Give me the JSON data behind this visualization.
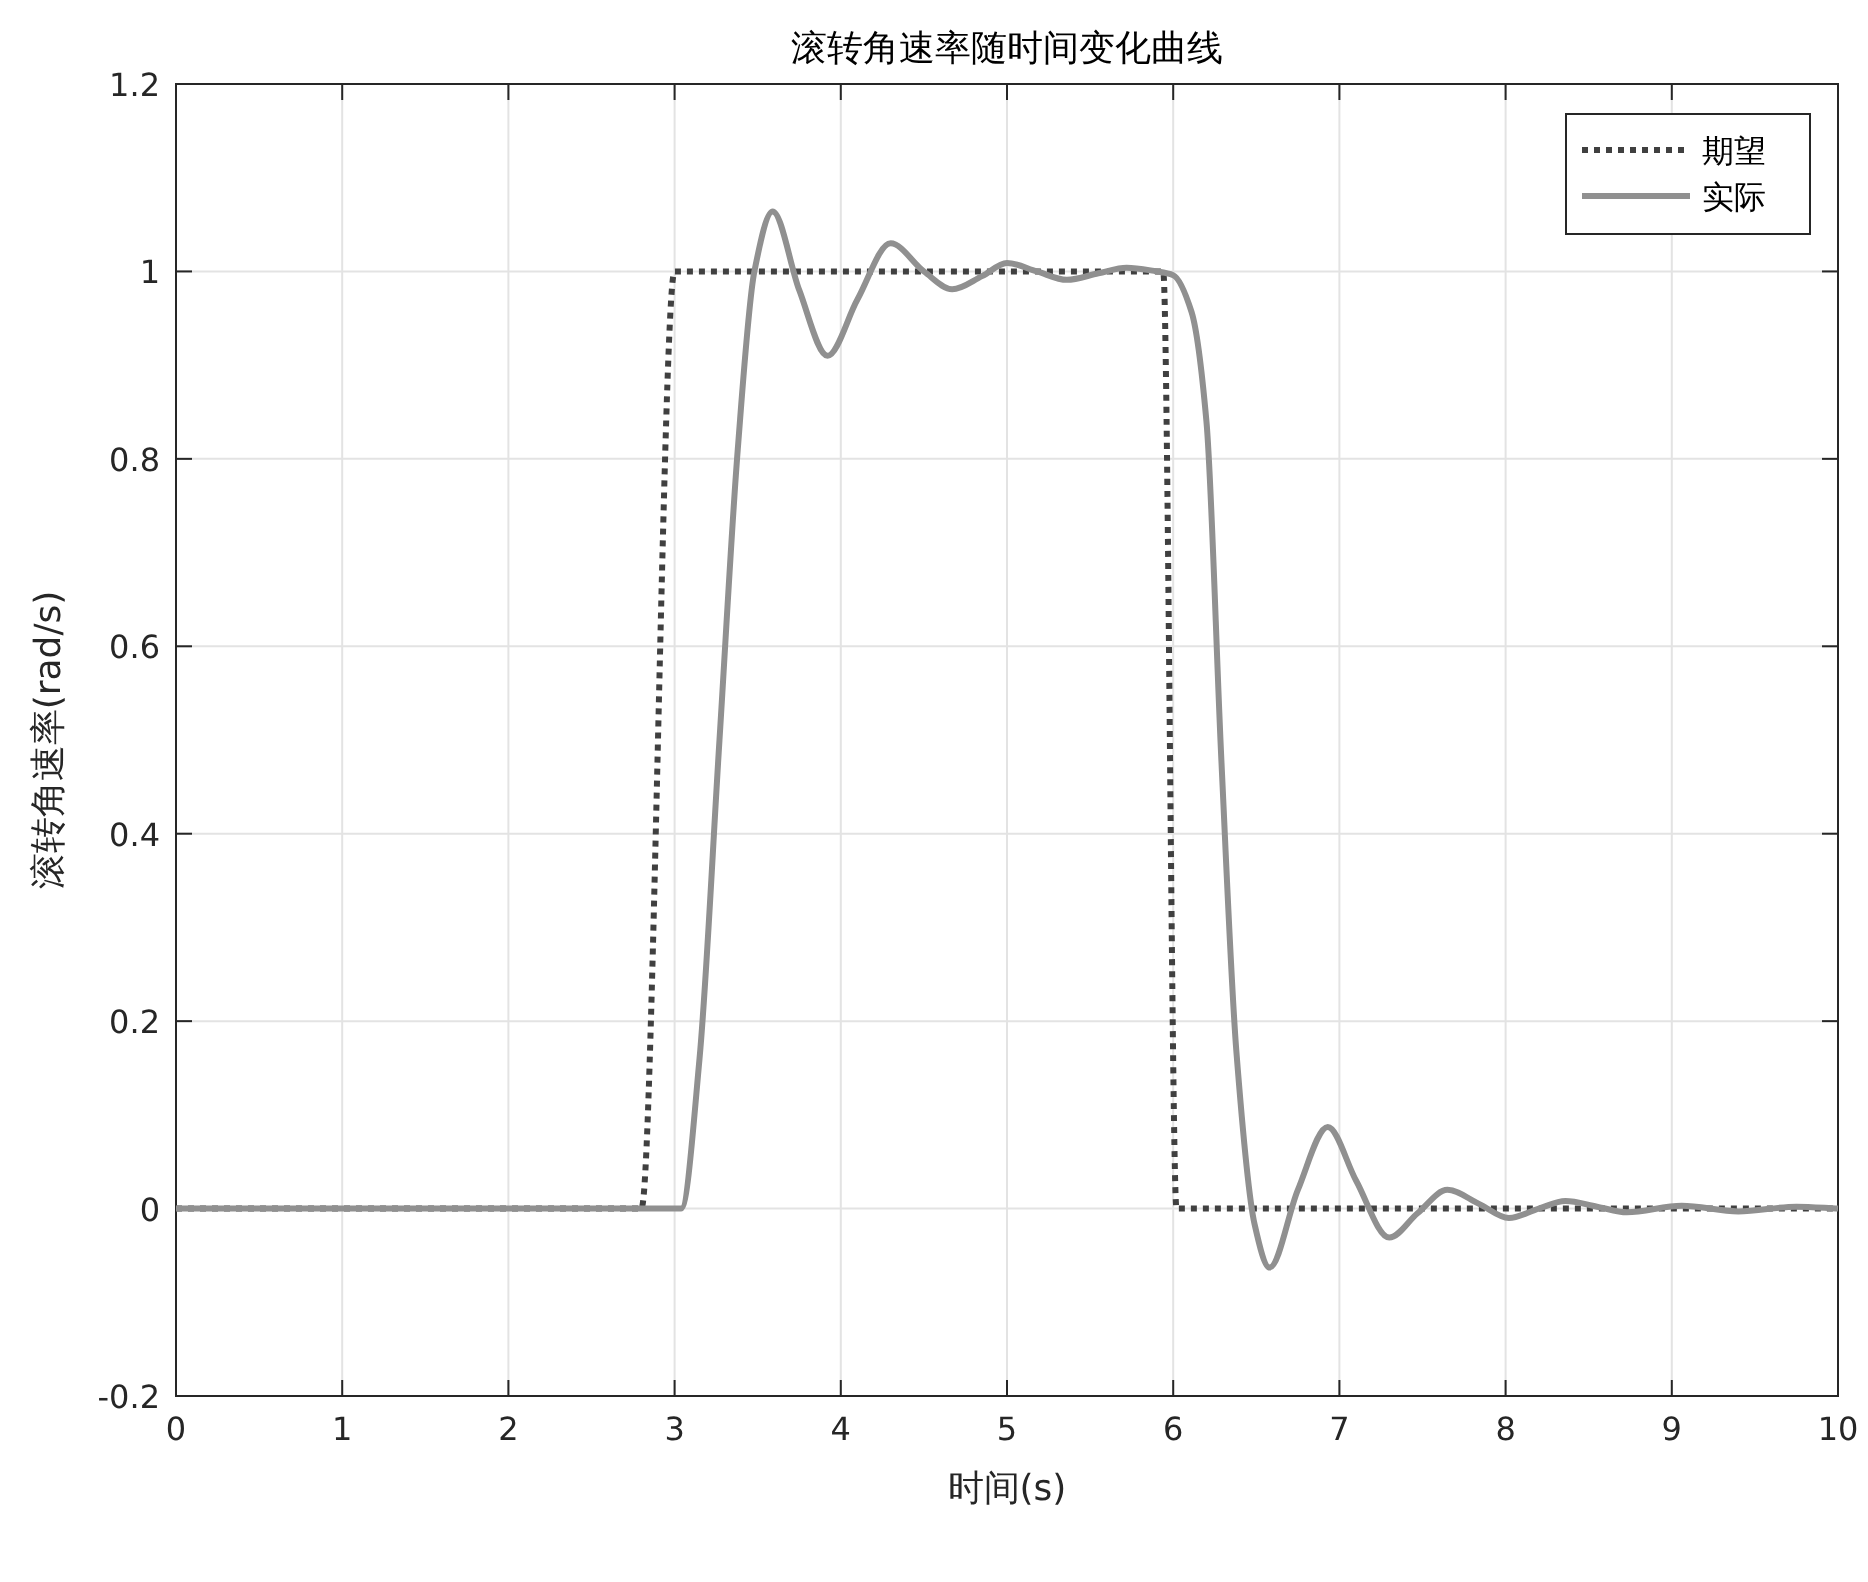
{
  "chart_data": {
    "type": "line",
    "title": "滚转角速率随时间变化曲线",
    "xlabel": "时间(s)",
    "ylabel": "滚转角速率(rad/s)",
    "xlim": [
      0,
      10
    ],
    "ylim": [
      -0.2,
      1.2
    ],
    "xticks": [
      0,
      1,
      2,
      3,
      4,
      5,
      6,
      7,
      8,
      9,
      10
    ],
    "yticks": [
      -0.2,
      0,
      0.2,
      0.4,
      0.6,
      0.8,
      1,
      1.2
    ],
    "grid": true,
    "legend": "top right",
    "marker": "none",
    "series": [
      {
        "name": "期望",
        "color": "#404040",
        "line_style": "dotted",
        "x": [
          0,
          2.8,
          3.0,
          5.94,
          6.02,
          10
        ],
        "values": [
          0,
          0,
          1,
          1,
          0,
          0
        ]
      },
      {
        "name": "实际",
        "color": "#909090",
        "line_style": "solid",
        "x": [
          0,
          3.04,
          3.15,
          3.27,
          3.38,
          3.48,
          3.59,
          3.75,
          3.92,
          4.1,
          4.3,
          4.5,
          4.67,
          4.85,
          5.0,
          5.18,
          5.36,
          5.55,
          5.72,
          5.9,
          6.0,
          6.11,
          6.2,
          6.29,
          6.38,
          6.49,
          6.58,
          6.75,
          6.93,
          7.1,
          7.3,
          7.47,
          7.65,
          7.84,
          8.02,
          8.2,
          8.36,
          8.55,
          8.73,
          9.06,
          9.4,
          9.75,
          10
        ],
        "values": [
          0,
          0,
          0.16,
          0.5,
          0.81,
          1.0,
          1.064,
          0.98,
          0.91,
          0.97,
          1.03,
          1.0,
          0.981,
          0.995,
          1.009,
          1.0,
          0.991,
          0.998,
          1.004,
          1.0,
          0.996,
          0.957,
          0.84,
          0.478,
          0.168,
          -0.017,
          -0.063,
          0.02,
          0.087,
          0.03,
          -0.031,
          -0.005,
          0.02,
          0.005,
          -0.01,
          0.0,
          0.008,
          0.002,
          -0.004,
          0.003,
          -0.003,
          0.002,
          0
        ]
      }
    ]
  }
}
